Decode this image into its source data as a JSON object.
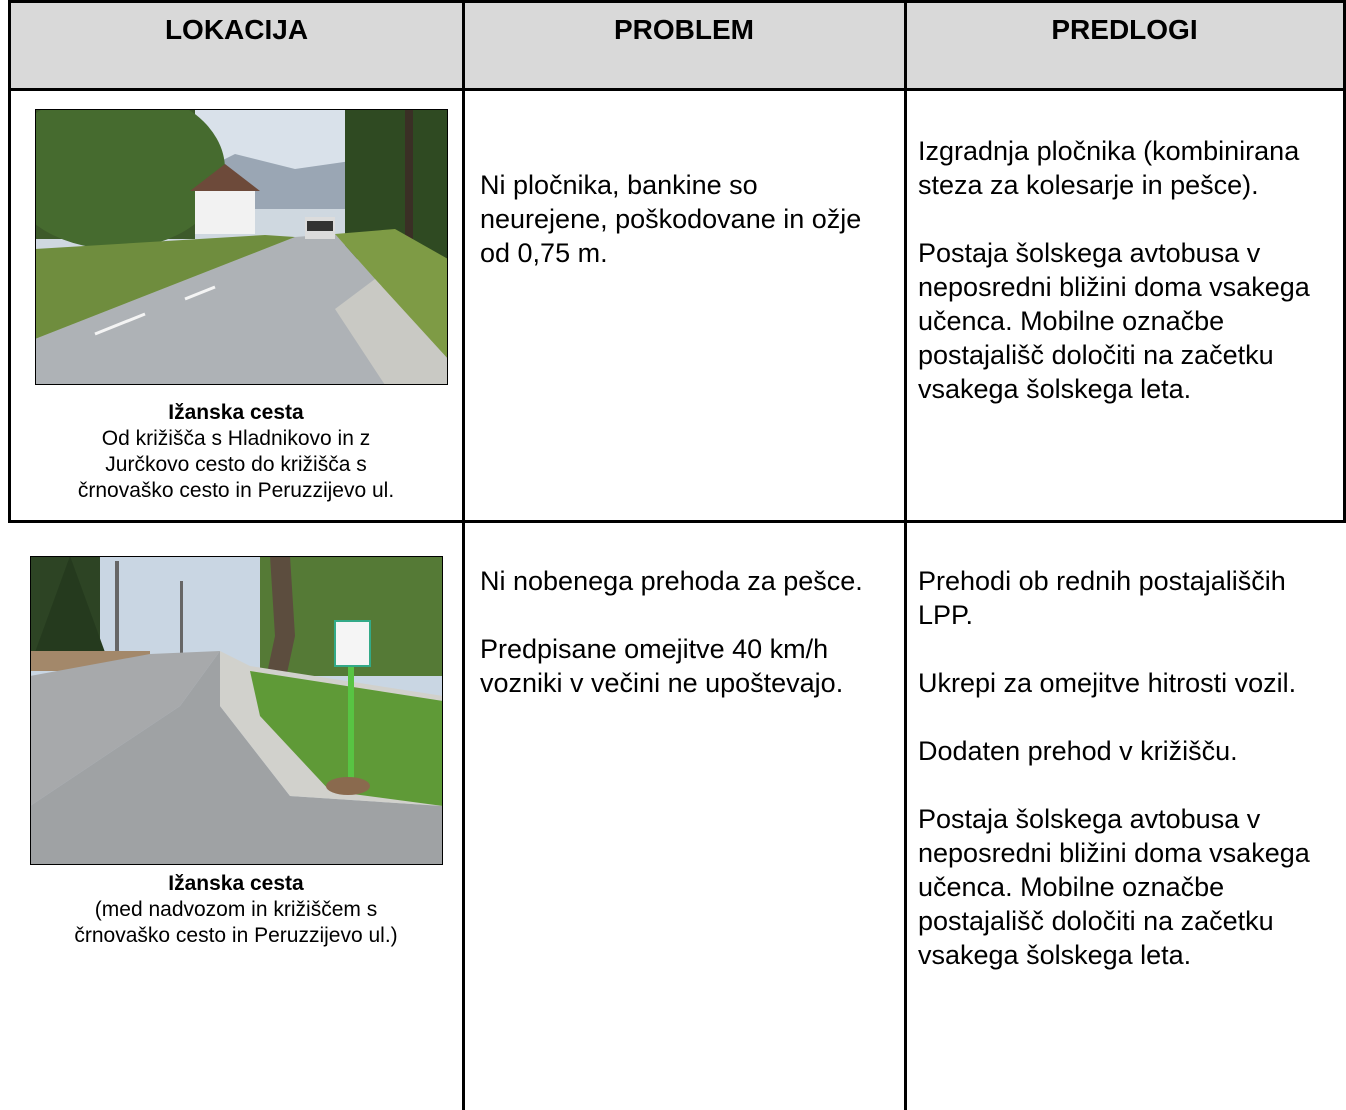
{
  "table": {
    "header": [
      "LOKACIJA",
      "PROBLEM",
      "PREDLOGI"
    ],
    "rows": [
      {
        "location": {
          "title": "Ižanska cesta",
          "description": [
            "Od križišča s Hladnikovo in z",
            "Jurčkovo cesto do križišča s",
            "črnovaško cesto in Peruzzijevo ul."
          ]
        },
        "problem": [
          "Ni pločnika, bankine so neurejene, poškodovane in ožje od 0,75 m."
        ],
        "proposals": [
          "Izgradnja pločnika (kombinirana steza za kolesarje in pešce).",
          "Postaja šolskega avtobusa v neposredni bližini doma vsakega učenca. Mobilne označbe postajališč določiti na začetku vsakega šolskega leta."
        ]
      },
      {
        "location": {
          "title": "Ižanska cesta",
          "description": [
            "(med nadvozom in križiščem s",
            "črnovaško cesto in Peruzzijevo ul.)"
          ]
        },
        "problem": [
          "Ni nobenega prehoda za pešce.",
          "Predpisane omejitve 40 km/h vozniki v večini ne upoštevajo."
        ],
        "proposals": [
          "Prehodi ob rednih postajališčih LPP.",
          "Ukrepi za omejitve hitrosti vozil.",
          "Dodaten prehod v križišču.",
          "Postaja šolskega avtobusa v neposredni bližini doma vsakega učenca. Mobilne označbe postajališč določiti na začetku vsakega šolskega leta."
        ]
      }
    ]
  }
}
